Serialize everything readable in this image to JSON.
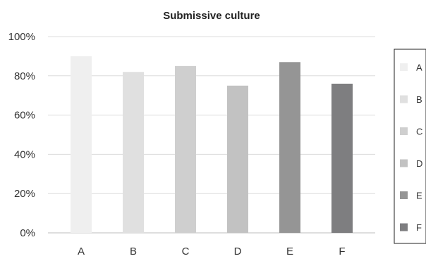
{
  "chart_data": {
    "type": "bar",
    "title": "Submissive culture",
    "xlabel": "",
    "ylabel": "",
    "categories": [
      "A",
      "B",
      "C",
      "D",
      "E",
      "F"
    ],
    "values": [
      0.9,
      0.82,
      0.85,
      0.75,
      0.87,
      0.76
    ],
    "ylim": [
      0,
      1
    ],
    "yticks": [
      "0%",
      "20%",
      "40%",
      "60%",
      "80%",
      "100%"
    ],
    "colors": [
      "#efefef",
      "#e0e0e0",
      "#cfcfcf",
      "#c2c2c2",
      "#959595",
      "#7e7e80"
    ],
    "grid": true,
    "legend": {
      "placement": "right",
      "entries": [
        "A",
        "B",
        "C",
        "D",
        "E",
        "F"
      ]
    }
  }
}
